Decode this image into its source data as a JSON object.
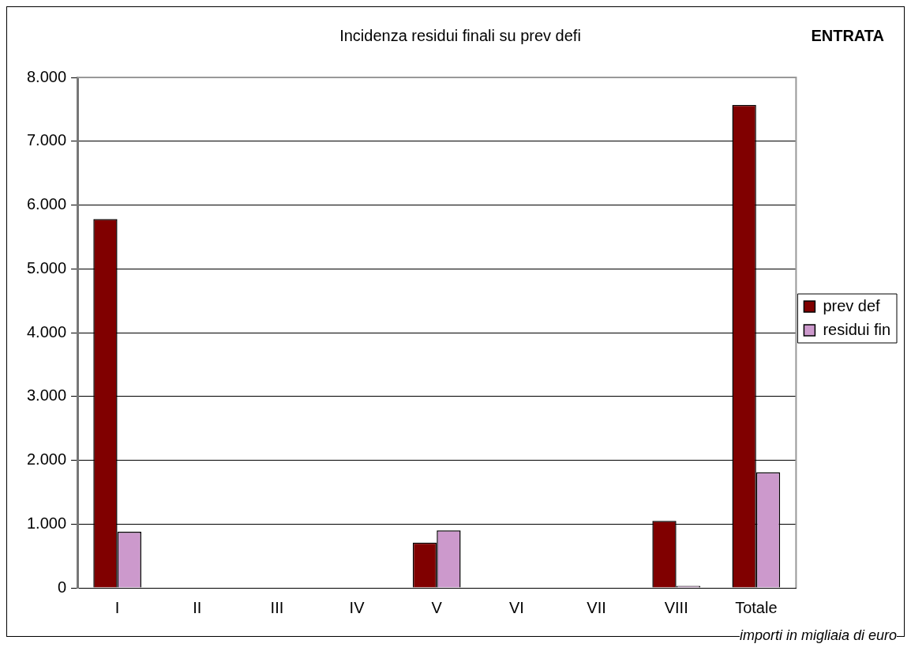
{
  "chart_data": {
    "type": "bar",
    "title": "Incidenza residui finali su prev defi",
    "subtitle": "ENTRATA",
    "categories": [
      "I",
      "II",
      "III",
      "IV",
      "V",
      "VI",
      "VII",
      "VIII",
      "Totale"
    ],
    "series": [
      {
        "name": "prev def",
        "color": "#800000",
        "values": [
          5780,
          0,
          0,
          0,
          710,
          0,
          0,
          1050,
          7570
        ]
      },
      {
        "name": "residui fin",
        "color": "#cc99cc",
        "values": [
          880,
          0,
          0,
          0,
          900,
          0,
          0,
          30,
          1810
        ]
      }
    ],
    "ylim": [
      0,
      8000
    ],
    "yticks": [
      0,
      {
        "value": 1000,
        "label": "1.000"
      },
      {
        "value": 2000,
        "label": "2.000"
      },
      {
        "value": 3000,
        "label": "3.000"
      },
      {
        "value": 4000,
        "label": "4.000"
      },
      {
        "value": 5000,
        "label": "5.000"
      },
      {
        "value": 6000,
        "label": "6.000"
      },
      {
        "value": 7000,
        "label": "7.000"
      },
      {
        "value": 8000,
        "label": "8.000"
      }
    ],
    "grid": "y",
    "legend": "right",
    "annotations": [
      "importi in migliaia di euro"
    ]
  }
}
